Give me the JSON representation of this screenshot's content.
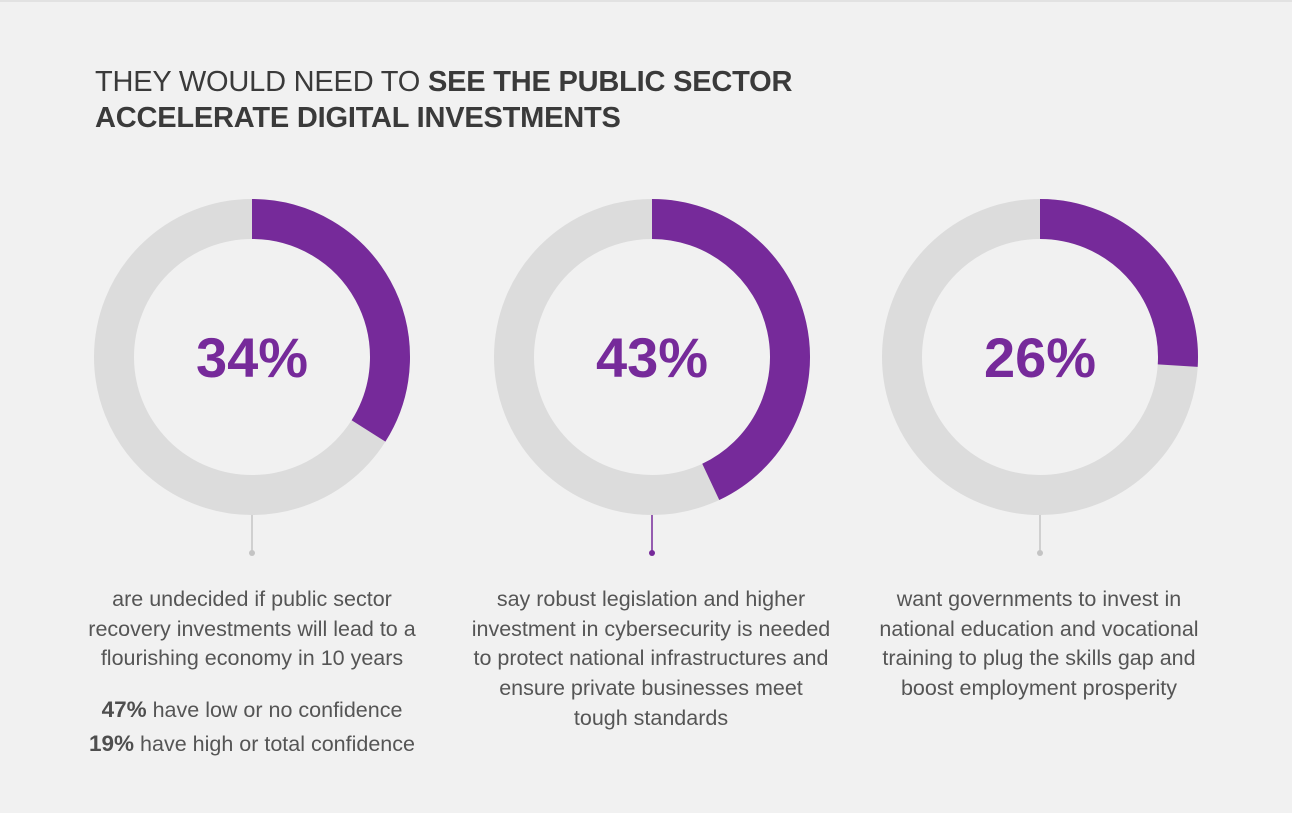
{
  "headline": {
    "light": "THEY WOULD NEED TO ",
    "bold": "SEE THE PUBLIC SECTOR ACCELERATE DIGITAL INVESTMENTS"
  },
  "colors": {
    "accent": "#762a9a",
    "track": "#dcdcdc",
    "connector_gray": "#c4c4c4",
    "background": "#f1f1f1",
    "text": "#555555"
  },
  "chart_data": [
    {
      "type": "pie",
      "variant": "donut",
      "value_percent": 34,
      "label": "34%",
      "highlighted_connector": false,
      "caption": "are undecided if public sector recovery investments will lead to a flourishing economy in 10 years",
      "stats": [
        {
          "value": "47%",
          "text": " have low or no confidence"
        },
        {
          "value": "19%",
          "text": " have high or total confidence"
        }
      ]
    },
    {
      "type": "pie",
      "variant": "donut",
      "value_percent": 43,
      "label": "43%",
      "highlighted_connector": true,
      "caption": "say robust legislation and higher investment in cybersecurity is needed to protect national infrastructures and ensure private businesses meet tough standards"
    },
    {
      "type": "pie",
      "variant": "donut",
      "value_percent": 26,
      "label": "26%",
      "highlighted_connector": false,
      "caption": "want governments to invest in national education and vocational training to plug the skills gap and boost employment prosperity"
    }
  ]
}
